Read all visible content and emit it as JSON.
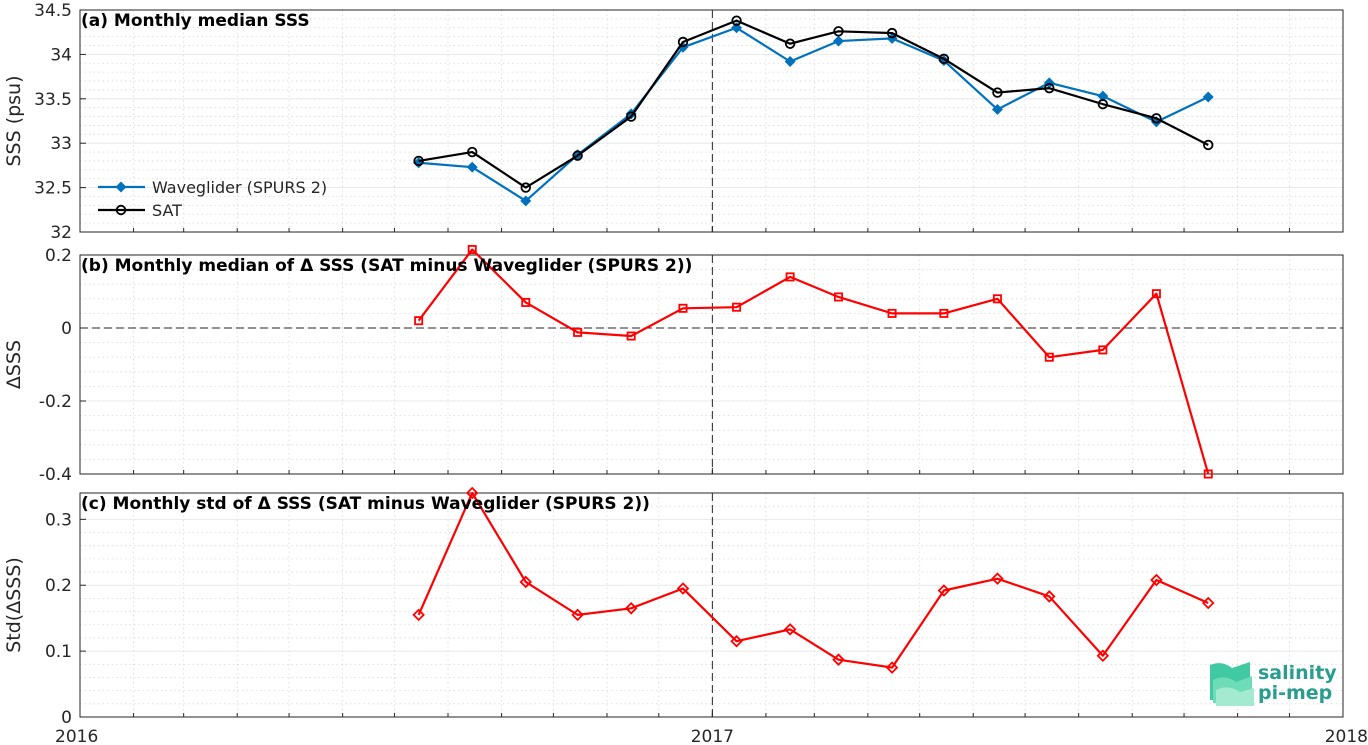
{
  "chart_data": [
    {
      "type": "line",
      "title": "(a) Monthly median SSS",
      "ylabel": "SSS (psu)",
      "ylim": [
        32,
        34.5
      ],
      "yticks": [
        "32",
        "32.5",
        "33",
        "33.5",
        "34",
        "34.5"
      ],
      "grid": "on",
      "legend_position": "left",
      "x": [
        "2016-07-15",
        "2016-08-15",
        "2016-09-15",
        "2016-10-15",
        "2016-11-15",
        "2016-12-15",
        "2017-01-15",
        "2017-02-15",
        "2017-03-15",
        "2017-04-15",
        "2017-05-15",
        "2017-06-15",
        "2017-07-15",
        "2017-08-15",
        "2017-09-15",
        "2017-10-15",
        "2017-11-15"
      ],
      "series": [
        {
          "name": "Waveglider (SPURS 2)",
          "color": "#0072bd",
          "marker": "diamond",
          "values": [
            32.78,
            32.73,
            32.35,
            32.87,
            33.33,
            34.08,
            34.3,
            33.92,
            34.15,
            34.18,
            33.93,
            33.38,
            33.68,
            33.53,
            33.24,
            33.52,
            null
          ]
        },
        {
          "name": "SAT",
          "color": "#000000",
          "marker": "circle",
          "values": [
            32.8,
            32.9,
            32.5,
            32.86,
            33.3,
            34.14,
            34.38,
            34.12,
            34.26,
            34.24,
            33.95,
            33.57,
            33.62,
            33.44,
            33.28,
            32.98,
            null
          ]
        }
      ]
    },
    {
      "type": "line",
      "title": "(b) Monthly median of Δ SSS (SAT minus Waveglider (SPURS 2))",
      "ylabel": "ΔSSS",
      "ylim": [
        -0.4,
        0.2
      ],
      "yticks": [
        "-0.4",
        "-0.2",
        "0",
        "0.2"
      ],
      "grid": "on",
      "zero_line": true,
      "x": [
        "2016-07-15",
        "2016-08-15",
        "2016-09-15",
        "2016-10-15",
        "2016-11-15",
        "2016-12-15",
        "2017-01-15",
        "2017-02-15",
        "2017-03-15",
        "2017-04-15",
        "2017-05-15",
        "2017-06-15",
        "2017-07-15",
        "2017-08-15",
        "2017-09-15",
        "2017-10-15",
        "2017-11-15"
      ],
      "series": [
        {
          "color": "#ff0000",
          "marker": "square",
          "values": [
            0.02,
            0.215,
            0.07,
            -0.012,
            -0.022,
            0.054,
            0.057,
            0.14,
            0.085,
            0.04,
            0.04,
            0.08,
            -0.08,
            -0.06,
            0.094,
            -0.4,
            null
          ]
        }
      ]
    },
    {
      "type": "line",
      "title": "(c) Monthly std of Δ SSS (SAT minus Waveglider (SPURS 2))",
      "ylabel": "Std(ΔSSS)",
      "ylim": [
        0,
        0.34
      ],
      "yticks": [
        "0",
        "0.1",
        "0.2",
        "0.3"
      ],
      "grid": "on",
      "x": [
        "2016-07-15",
        "2016-08-15",
        "2016-09-15",
        "2016-10-15",
        "2016-11-15",
        "2016-12-15",
        "2017-01-15",
        "2017-02-15",
        "2017-03-15",
        "2017-04-15",
        "2017-05-15",
        "2017-06-15",
        "2017-07-15",
        "2017-08-15",
        "2017-09-15",
        "2017-10-15",
        "2017-11-15"
      ],
      "series": [
        {
          "color": "#ff0000",
          "marker": "diamond",
          "values": [
            0.155,
            0.34,
            0.205,
            0.155,
            0.165,
            0.195,
            0.115,
            0.133,
            0.087,
            0.075,
            0.192,
            0.21,
            0.183,
            0.093,
            0.208,
            0.173,
            null
          ]
        }
      ]
    }
  ],
  "x_axis": {
    "ticks": [
      "2016",
      "2017",
      "2018"
    ],
    "range": [
      "2016-01-01",
      "2018-01-01"
    ],
    "marker_line": "2017"
  },
  "logo": {
    "line1": "salinity",
    "line2": "pi-mep"
  }
}
